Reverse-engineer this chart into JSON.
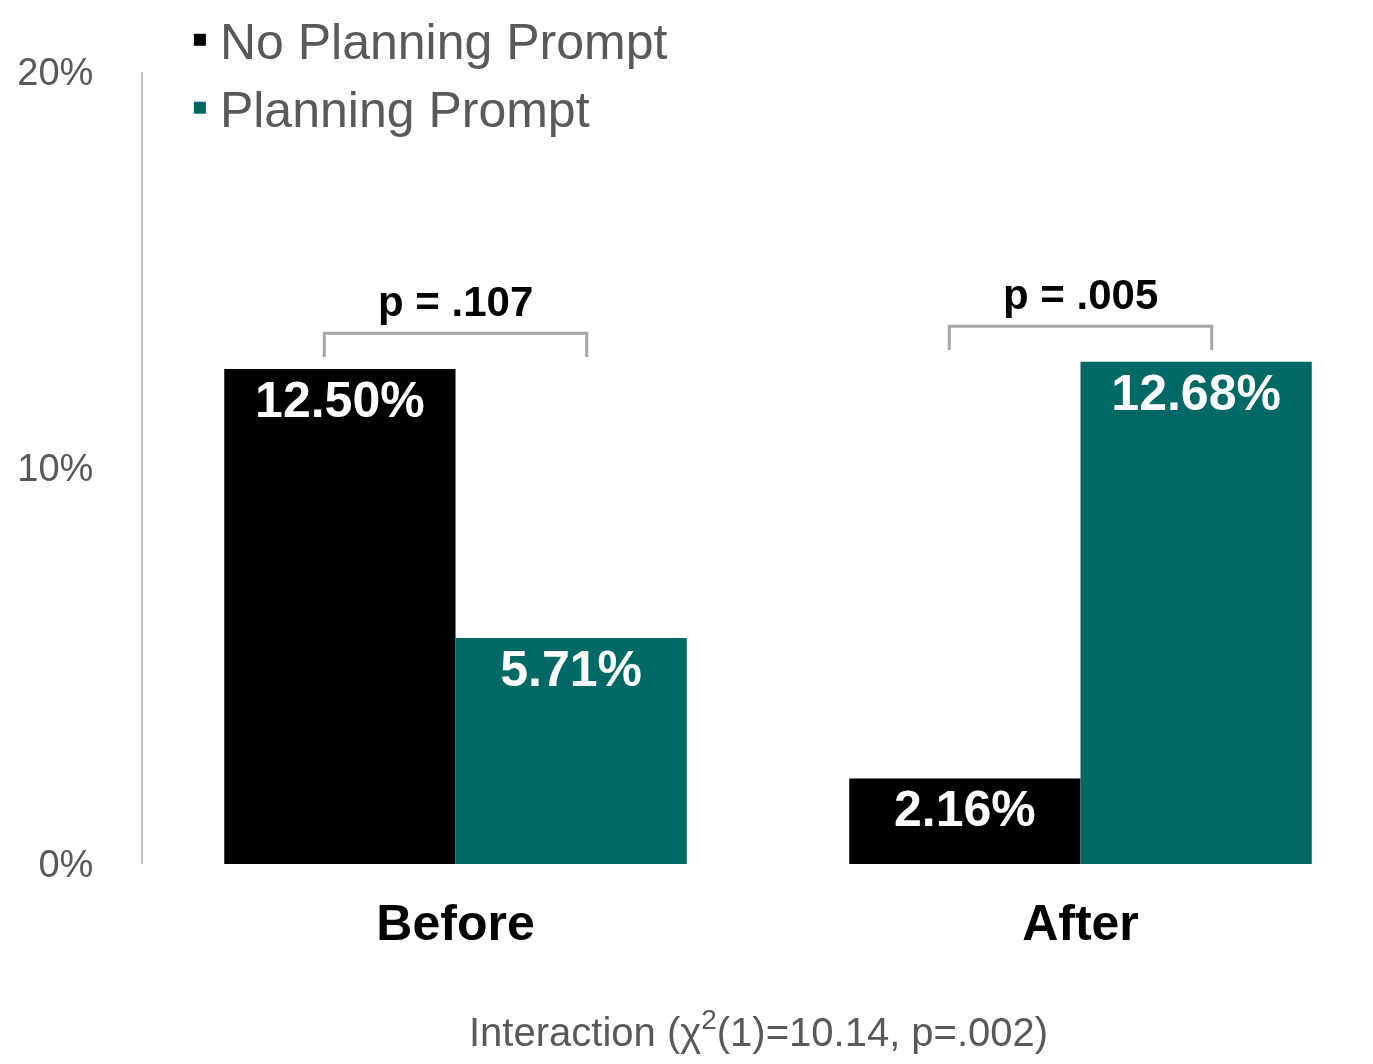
{
  "chart_data": {
    "type": "bar",
    "categories": [
      "Before",
      "After"
    ],
    "series": [
      {
        "name": "No Planning Prompt",
        "color": "#000000",
        "values": [
          12.5,
          2.16
        ],
        "value_labels": [
          "12.50%",
          "2.16%"
        ]
      },
      {
        "name": "Planning Prompt",
        "color": "#006966",
        "values": [
          5.71,
          12.68
        ],
        "value_labels": [
          "5.71%",
          "12.68%"
        ]
      }
    ],
    "ylim": [
      0,
      20
    ],
    "yticks": [
      {
        "value": 0,
        "label": "0%"
      },
      {
        "value": 10,
        "label": "10%"
      },
      {
        "value": 20,
        "label": "20%"
      }
    ],
    "grid": false,
    "legend": "top left",
    "annotations": [
      "p = .107",
      "p = .005",
      "Interaction (χ$^{2}$(1)=10.14, p=.002)"
    ]
  }
}
